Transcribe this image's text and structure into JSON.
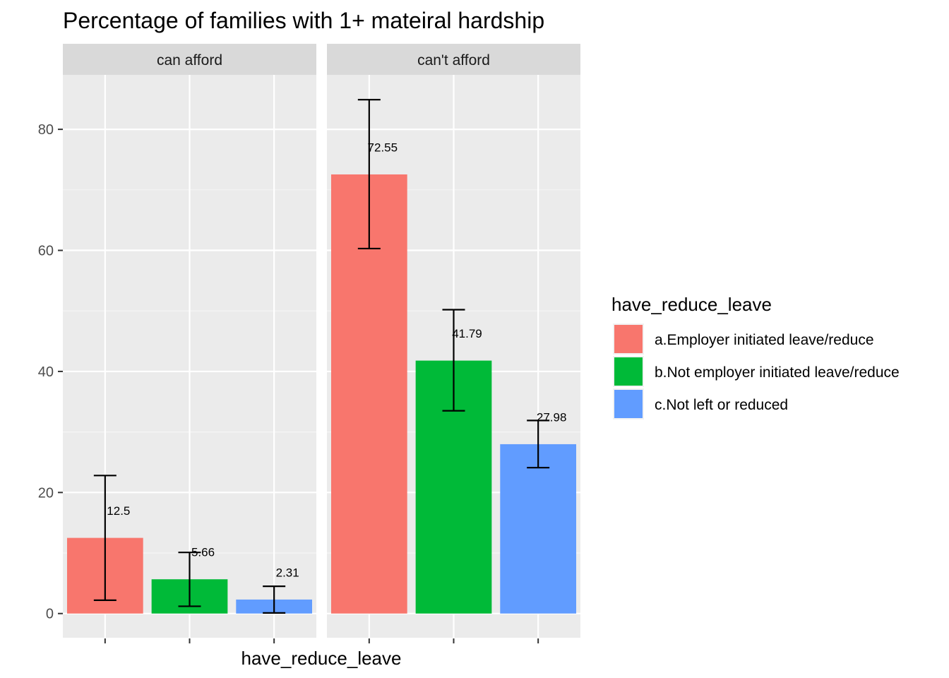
{
  "chart_data": {
    "type": "bar",
    "title": "Percentage of families with 1+ mateiral hardship",
    "xlabel": "have_reduce_leave",
    "ylabel": "",
    "ylim": [
      -4,
      89
    ],
    "yticks": [
      0,
      20,
      40,
      60,
      80
    ],
    "ytick_labels": [
      "0",
      "20",
      "40",
      "60",
      "80"
    ],
    "grid": true,
    "legend": {
      "title": "have_reduce_leave",
      "placement": "right",
      "entries": [
        {
          "label": "a.Employer initiated leave/reduce",
          "color": "#F8766D"
        },
        {
          "label": "b.Not employer initiated leave/reduce",
          "color": "#00BA38"
        },
        {
          "label": "c.Not left or reduced",
          "color": "#619CFF"
        }
      ]
    },
    "categories": [
      "a.Employer initiated leave/reduce",
      "b.Not employer initiated leave/reduce",
      "c.Not left or reduced"
    ],
    "facets": [
      {
        "label": "can afford",
        "values": [
          12.5,
          5.66,
          2.31
        ],
        "value_labels": [
          "12.5",
          "5.66",
          "2.31"
        ],
        "error_low": [
          2.2,
          1.2,
          0.1
        ],
        "error_high": [
          22.8,
          10.1,
          4.5
        ]
      },
      {
        "label": "can't afford",
        "values": [
          72.55,
          41.79,
          27.98
        ],
        "value_labels": [
          "72.55",
          "41.79",
          "27.98"
        ],
        "error_low": [
          60.3,
          33.5,
          24.1
        ],
        "error_high": [
          84.9,
          50.2,
          31.9
        ]
      }
    ]
  }
}
